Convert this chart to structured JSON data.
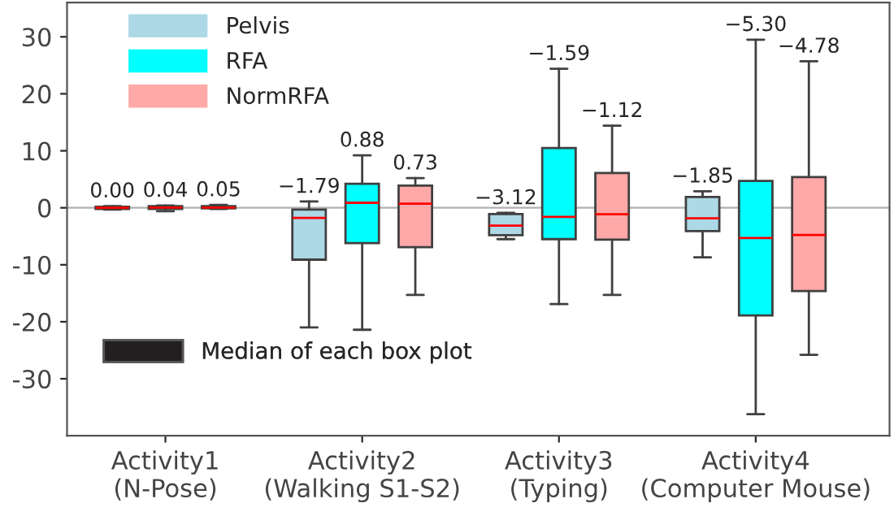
{
  "chart_data": {
    "type": "box",
    "categories": [
      "Activity1\n(N-Pose)",
      "Activity2\n(Walking S1-S2)",
      "Activity3\n(Typing)",
      "Activity4\n(Computer Mouse)"
    ],
    "series": [
      {
        "name": "Pelvis",
        "color": "#add8e6",
        "value_labels": [
          "0.00",
          "−1.79",
          "−3.12",
          "−1.85"
        ],
        "boxes": [
          {
            "low": -0.3,
            "q1": -0.2,
            "median": 0.0,
            "q3": 0.2,
            "high": 0.3
          },
          {
            "low": -21.0,
            "q1": -9.1,
            "median": -1.79,
            "q3": -0.3,
            "high": 1.1
          },
          {
            "low": -5.5,
            "q1": -4.8,
            "median": -3.12,
            "q3": -1.1,
            "high": -0.9
          },
          {
            "low": -8.7,
            "q1": -4.1,
            "median": -1.85,
            "q3": 1.9,
            "high": 2.9
          }
        ]
      },
      {
        "name": "RFA",
        "color": "#00ffff",
        "value_labels": [
          "0.04",
          "0.88",
          "−1.59",
          "−5.30"
        ],
        "boxes": [
          {
            "low": -0.6,
            "q1": -0.2,
            "median": 0.04,
            "q3": 0.3,
            "high": 0.4
          },
          {
            "low": -21.4,
            "q1": -6.2,
            "median": 0.88,
            "q3": 4.2,
            "high": 9.2
          },
          {
            "low": -16.9,
            "q1": -5.5,
            "median": -1.59,
            "q3": 10.5,
            "high": 24.4
          },
          {
            "low": -36.2,
            "q1": -18.9,
            "median": -5.3,
            "q3": 4.7,
            "high": 29.5
          }
        ]
      },
      {
        "name": "NormRFA",
        "color": "#ffa8a8",
        "value_labels": [
          "0.05",
          "0.73",
          "−1.12",
          "−4.78"
        ],
        "boxes": [
          {
            "low": -0.2,
            "q1": -0.1,
            "median": 0.05,
            "q3": 0.3,
            "high": 0.5
          },
          {
            "low": -15.3,
            "q1": -6.9,
            "median": 0.73,
            "q3": 3.9,
            "high": 5.2
          },
          {
            "low": -15.3,
            "q1": -5.6,
            "median": -1.12,
            "q3": 6.1,
            "high": 14.4
          },
          {
            "low": -25.8,
            "q1": -14.6,
            "median": -4.78,
            "q3": 5.4,
            "high": 25.7
          }
        ]
      }
    ],
    "ylim": [
      -40,
      36
    ],
    "yticks": [
      -30,
      -20,
      -10,
      0,
      10,
      20,
      30
    ],
    "grid": false,
    "legend": "top left",
    "ref_lines": [
      {
        "axis": "y",
        "value": 0,
        "color": "#b0b0b0"
      }
    ],
    "annotations": [
      "Median of each box plot"
    ]
  }
}
